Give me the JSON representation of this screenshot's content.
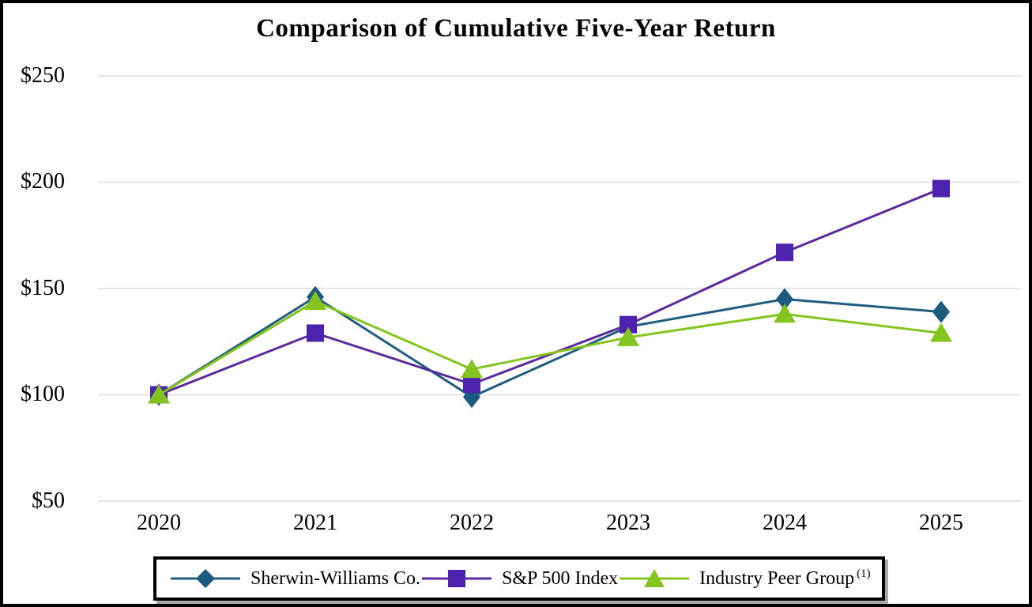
{
  "chart_data": {
    "type": "line",
    "title": "Comparison of Cumulative Five-Year Return",
    "categories": [
      "2020",
      "2021",
      "2022",
      "2023",
      "2024",
      "2025"
    ],
    "y_tick_labels": [
      "$250",
      "$200",
      "$150",
      "$100",
      "$50"
    ],
    "y_ticks": [
      250,
      200,
      150,
      100,
      50
    ],
    "ylim": [
      50,
      250
    ],
    "grid": "horizontal-only",
    "gridline_color": "#E5E5E5",
    "legend_position": "bottom",
    "series": [
      {
        "name": "Sherwin-Williams Co.",
        "marker": "diamond",
        "line_color": "#1F5C7F",
        "marker_color": "#1C5A80",
        "values": [
          100,
          146,
          99,
          132,
          145,
          139
        ]
      },
      {
        "name": "S&P 500 Index",
        "marker": "square",
        "line_color": "#5A2B9D",
        "marker_color": "#4C22AE",
        "values": [
          100,
          129,
          105,
          133,
          167,
          197
        ]
      },
      {
        "name": "Industry Peer Group",
        "name_superscript": "(1)",
        "marker": "triangle",
        "line_color": "#84C41E",
        "marker_color": "#84C41E",
        "values": [
          100,
          144,
          112,
          127,
          138,
          129
        ]
      }
    ]
  }
}
